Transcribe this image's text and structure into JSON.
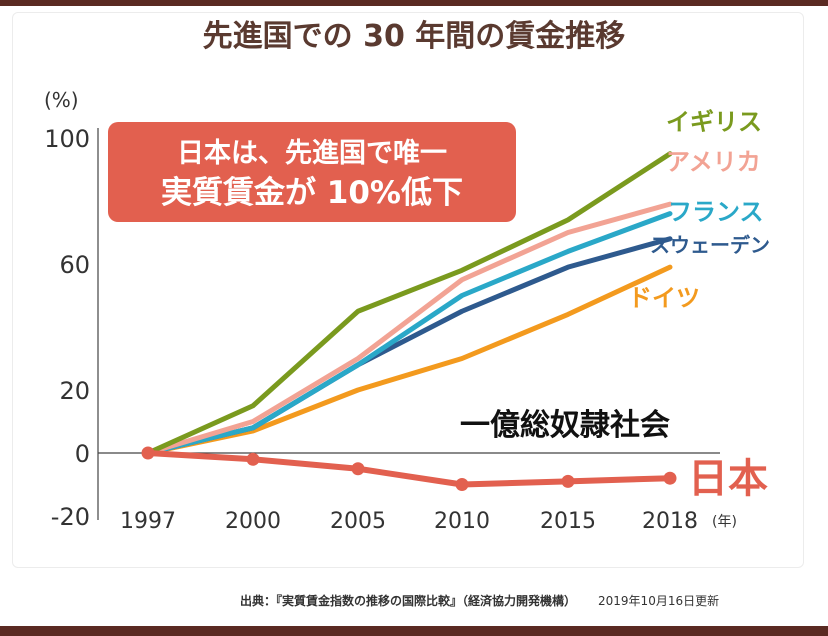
{
  "chart_data": {
    "type": "line",
    "title": "先進国での 30 年間の賃金推移",
    "y_unit": "(%)",
    "x_unit": "(年)",
    "callout": [
      "日本は、先進国で唯一",
      "実質賃金が 10%低下"
    ],
    "overlay_text": "一億総奴隷社会",
    "x": [
      1997,
      2000,
      2005,
      2010,
      2015,
      2018
    ],
    "ylim": [
      -20,
      100
    ],
    "yticks": [
      100,
      60,
      20,
      0,
      -20
    ],
    "series": [
      {
        "name": "イギリス",
        "color": "#7a9a1e",
        "values": [
          0,
          15,
          45,
          58,
          74,
          95
        ]
      },
      {
        "name": "アメリカ",
        "color": "#f2a394",
        "values": [
          0,
          10,
          30,
          55,
          70,
          79
        ]
      },
      {
        "name": "フランス",
        "color": "#2aa8c8",
        "values": [
          0,
          8,
          28,
          50,
          64,
          76
        ]
      },
      {
        "name": "スウェーデン",
        "color": "#2e5a8e",
        "values": [
          0,
          8,
          28,
          45,
          59,
          68
        ]
      },
      {
        "name": "ドイツ",
        "color": "#f39a1e",
        "values": [
          0,
          7,
          20,
          30,
          44,
          59
        ]
      },
      {
        "name": "日本",
        "color": "#e2604f",
        "values": [
          0,
          -2,
          -5,
          -10,
          -9,
          -8
        ]
      }
    ]
  },
  "footer": {
    "source": "出典：『実質賃金指数の推移の国際比較』（経済協力開発機構）",
    "updated": "2019年10月16日更新"
  },
  "colors": {
    "title": "#5a3a30",
    "callout_bg": "#e2604f",
    "frame": "#5a2a22"
  }
}
